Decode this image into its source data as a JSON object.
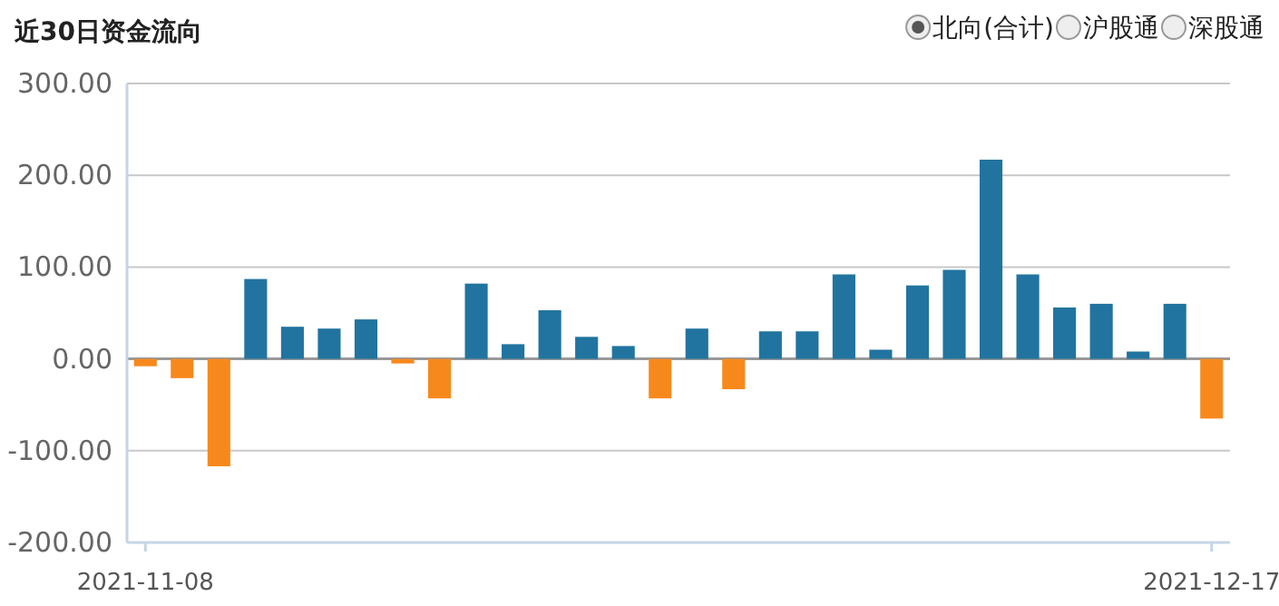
{
  "chart_data": {
    "type": "bar",
    "title": "近30日资金流向",
    "annotations": [
      "北向(合计)",
      "沪股通",
      "深股通"
    ],
    "categories": [
      "2021-11-08",
      null,
      null,
      null,
      null,
      null,
      null,
      null,
      null,
      null,
      null,
      null,
      null,
      null,
      null,
      null,
      null,
      null,
      null,
      null,
      null,
      null,
      null,
      null,
      null,
      null,
      null,
      null,
      null,
      "2021-12-17"
    ],
    "values": [
      -8,
      -21,
      -117,
      87,
      35,
      33,
      43,
      -5,
      -43,
      82,
      16,
      53,
      24,
      14,
      -43,
      33,
      -33,
      30,
      30,
      92,
      10,
      80,
      97,
      217,
      92,
      56,
      60,
      8,
      60,
      -65
    ],
    "colors": [
      "#f7891c",
      "#f7891c",
      "#f7891c",
      "#21749f",
      "#21749f",
      "#21749f",
      "#21749f",
      "#f7891c",
      "#f7891c",
      "#21749f",
      "#21749f",
      "#21749f",
      "#21749f",
      "#21749f",
      "#f7891c",
      "#21749f",
      "#f7891c",
      "#21749f",
      "#21749f",
      "#21749f",
      "#21749f",
      "#21749f",
      "#21749f",
      "#21749f",
      "#21749f",
      "#21749f",
      "#21749f",
      "#21749f",
      "#21749f",
      "#f7891c"
    ],
    "ylim": [
      -200,
      300
    ],
    "yticks": [
      {
        "value": -200,
        "label": "-200.00"
      },
      {
        "value": -100,
        "label": "-100.00"
      },
      {
        "value": 0,
        "label": "0.00"
      },
      {
        "value": 100,
        "label": "100.00"
      },
      {
        "value": 200,
        "label": "200.00"
      },
      {
        "value": 300,
        "label": "300.00"
      }
    ],
    "grid": "y"
  }
}
